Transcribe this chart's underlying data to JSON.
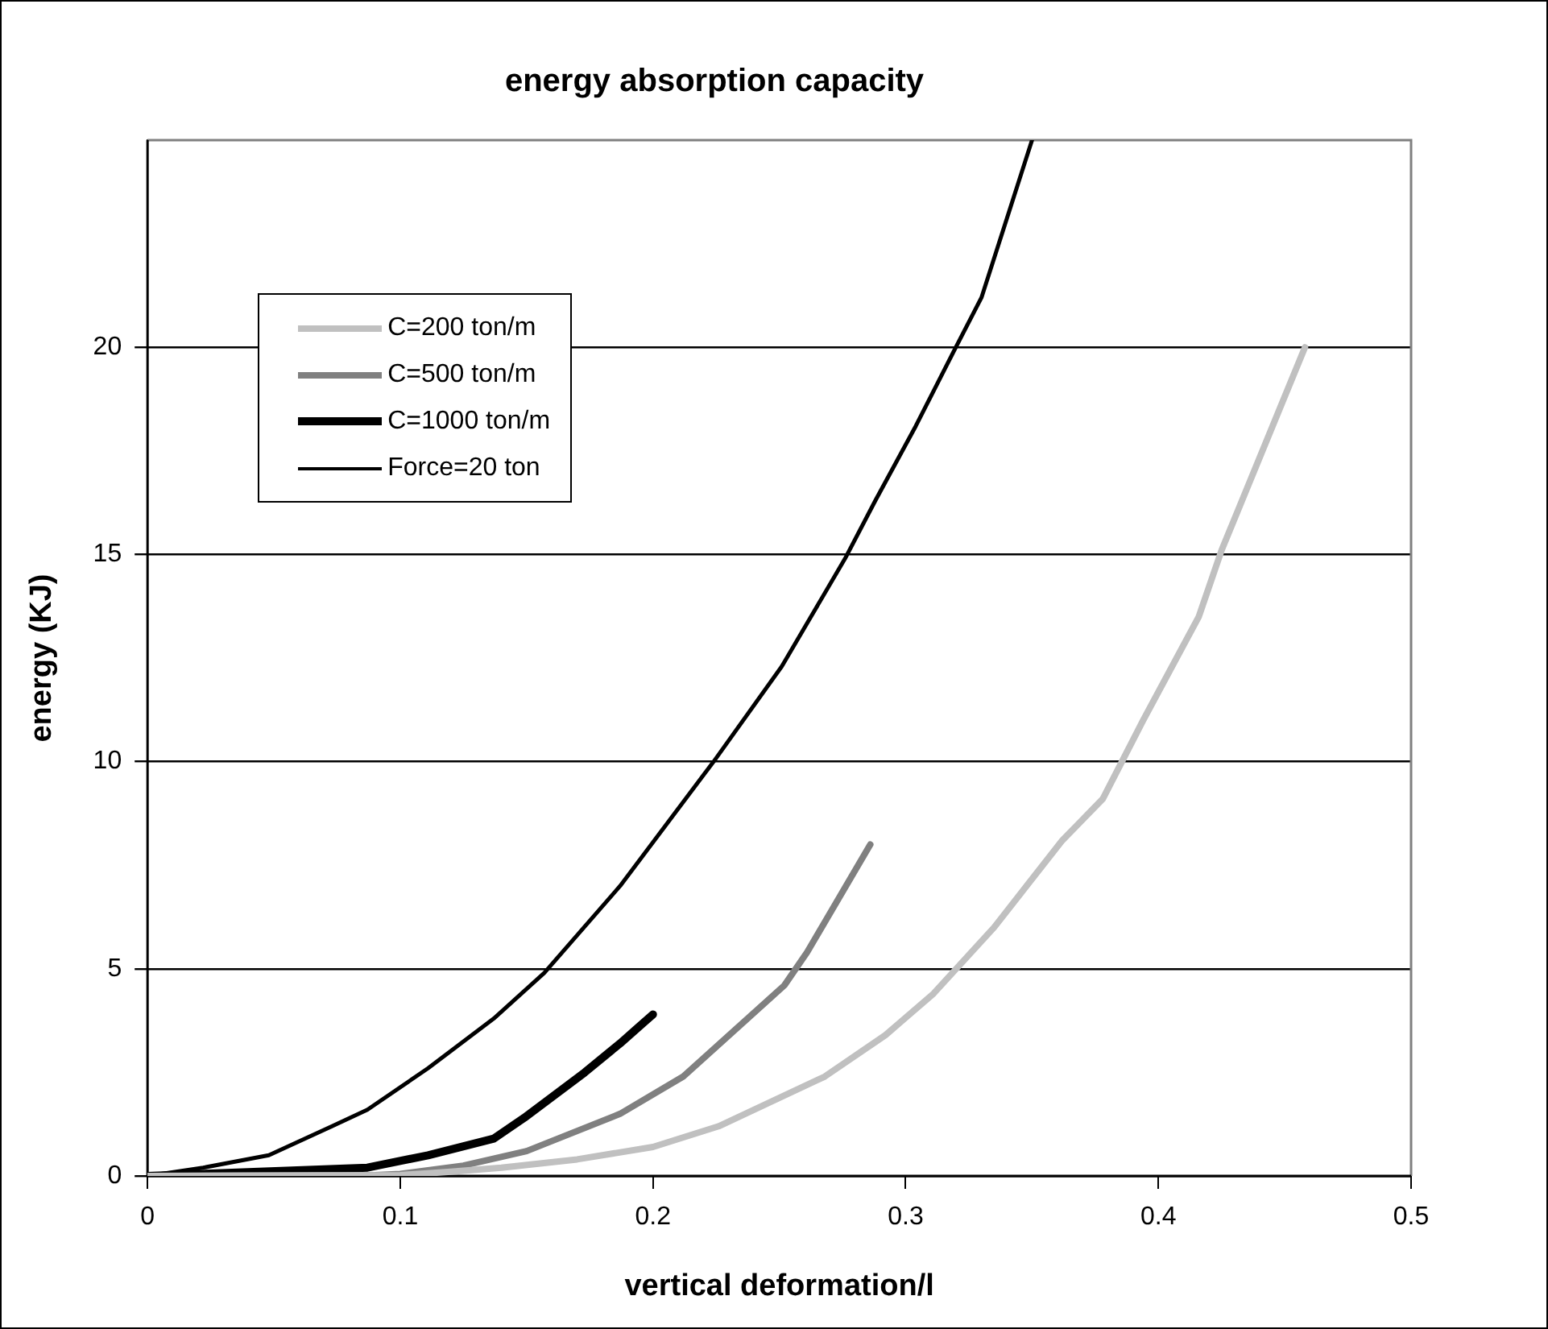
{
  "chart_data": {
    "type": "line",
    "title": "energy absorption capacity",
    "xlabel": "vertical deformation/l",
    "ylabel": "energy (KJ)",
    "xlim": [
      0,
      0.5
    ],
    "xticks": [
      0,
      0.1,
      0.2,
      0.3,
      0.4,
      0.5
    ],
    "ylim": [
      0,
      25
    ],
    "yticks": [
      0,
      5,
      10,
      15,
      20
    ],
    "grid": "y",
    "legend": "top left",
    "marker": "none",
    "line_style": "solid",
    "series": [
      {
        "name": "C=200 ton/m",
        "color": "#c0c0c0",
        "x": [
          0,
          0.1,
          0.12,
          0.14,
          0.17,
          0.2,
          0.226,
          0.268,
          0.292,
          0.311,
          0.335,
          0.362,
          0.378,
          0.394,
          0.416,
          0.425,
          0.458
        ],
        "values": [
          0,
          0.02,
          0.1,
          0.2,
          0.4,
          0.7,
          1.2,
          2.4,
          3.4,
          4.4,
          6.0,
          8.1,
          9.1,
          11.0,
          13.5,
          15.1,
          20.0
        ]
      },
      {
        "name": "C=500 ton/m",
        "color": "#808080",
        "x": [
          0,
          0.09,
          0.1,
          0.125,
          0.15,
          0.187,
          0.212,
          0.252,
          0.261,
          0.286
        ],
        "values": [
          0,
          0.02,
          0.05,
          0.25,
          0.6,
          1.5,
          2.4,
          4.6,
          5.4,
          8.0
        ]
      },
      {
        "name": "C=1000 ton/m",
        "color": "#000000",
        "x": [
          0,
          0.087,
          0.111,
          0.137,
          0.149,
          0.173,
          0.187,
          0.2
        ],
        "values": [
          0,
          0.2,
          0.5,
          0.9,
          1.4,
          2.5,
          3.2,
          3.9
        ]
      },
      {
        "name": "Force=20 ton",
        "color": "#000000",
        "x": [
          0,
          0.022,
          0.048,
          0.073,
          0.087,
          0.111,
          0.137,
          0.157,
          0.187,
          0.224,
          0.251,
          0.276,
          0.288,
          0.304,
          0.319,
          0.33,
          0.35
        ],
        "values": [
          0,
          0.2,
          0.5,
          1.2,
          1.6,
          2.6,
          3.8,
          4.9,
          7.0,
          10.0,
          12.3,
          14.9,
          16.3,
          18.1,
          19.9,
          21.2,
          25
        ]
      }
    ]
  }
}
